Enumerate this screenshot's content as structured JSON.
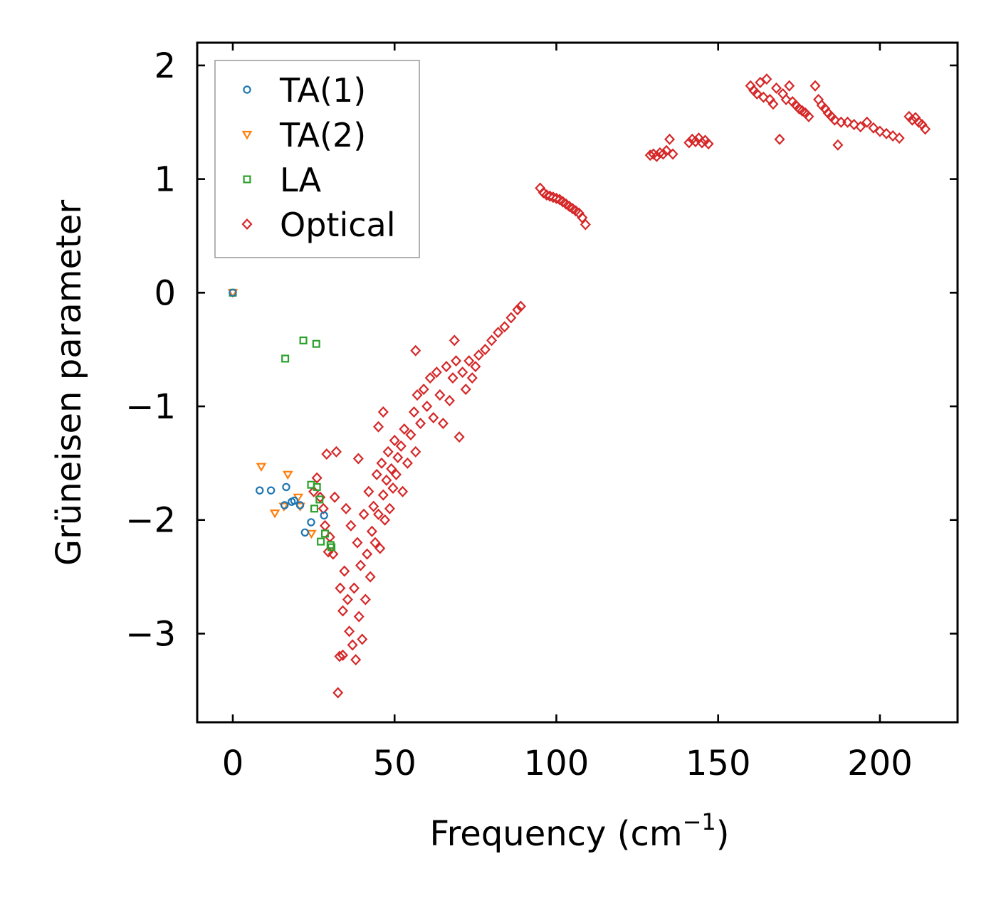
{
  "chart_data": {
    "type": "scatter",
    "title": "",
    "xlabel": "Frequency (cm",
    "xlabel_sup": "−1",
    "xlabel_close": ")",
    "ylabel": "Grüneisen parameter",
    "xlim": [
      -11,
      224
    ],
    "ylim": [
      -3.78,
      2.2
    ],
    "xticks": [
      0,
      50,
      100,
      150,
      200
    ],
    "xtick_labels": [
      "0",
      "50",
      "100",
      "150",
      "200"
    ],
    "yticks": [
      -3,
      -2,
      -1,
      0,
      1,
      2
    ],
    "ytick_labels": [
      "−3",
      "−2",
      "−1",
      "0",
      "1",
      "2"
    ],
    "grid": false,
    "legend_position": "top-left",
    "series": [
      {
        "name": "TA(1)",
        "marker": "circle",
        "color": "#1f77b4",
        "points": [
          [
            0,
            0
          ],
          [
            8.3,
            -1.74
          ],
          [
            11.8,
            -1.74
          ],
          [
            16,
            -1.87
          ],
          [
            16.5,
            -1.71
          ],
          [
            18.2,
            -1.84
          ],
          [
            19,
            -1.83
          ],
          [
            20.8,
            -1.87
          ],
          [
            22.3,
            -2.11
          ],
          [
            24.2,
            -2.02
          ],
          [
            28.2,
            -1.96
          ]
        ]
      },
      {
        "name": "TA(2)",
        "marker": "triangle-down",
        "color": "#ff7f0e",
        "points": [
          [
            0,
            0
          ],
          [
            8.8,
            -1.53
          ],
          [
            13,
            -1.94
          ],
          [
            15.8,
            -1.88
          ],
          [
            17,
            -1.6
          ],
          [
            20.2,
            -1.8
          ],
          [
            20.8,
            -1.88
          ],
          [
            24.3,
            -2.12
          ]
        ]
      },
      {
        "name": "LA",
        "marker": "square",
        "color": "#2ca02c",
        "points": [
          [
            0,
            0
          ],
          [
            16.2,
            -0.58
          ],
          [
            21.8,
            -0.42
          ],
          [
            25.8,
            -0.45
          ],
          [
            24.2,
            -1.69
          ],
          [
            26,
            -1.71
          ],
          [
            25.2,
            -1.9
          ],
          [
            26.8,
            -1.82
          ],
          [
            27.2,
            -2.19
          ],
          [
            28.5,
            -2.12
          ],
          [
            30.2,
            -2.22
          ],
          [
            30.5,
            -2.24
          ]
        ]
      },
      {
        "name": "Optical",
        "marker": "diamond",
        "color": "#d62728",
        "points": [
          [
            25,
            -1.75
          ],
          [
            26,
            -1.63
          ],
          [
            27,
            -1.8
          ],
          [
            28,
            -1.9
          ],
          [
            28.5,
            -2.05
          ],
          [
            29,
            -1.42
          ],
          [
            29.5,
            -2.28
          ],
          [
            30,
            -2.15
          ],
          [
            31,
            -2.3
          ],
          [
            31.5,
            -1.8
          ],
          [
            32,
            -1.4
          ],
          [
            32.5,
            -3.52
          ],
          [
            33,
            -3.2
          ],
          [
            33.2,
            -2.6
          ],
          [
            34,
            -2.8
          ],
          [
            34,
            -3.19
          ],
          [
            34.5,
            -2.45
          ],
          [
            35,
            -1.9
          ],
          [
            35.5,
            -2.7
          ],
          [
            36,
            -2.98
          ],
          [
            36.5,
            -2.05
          ],
          [
            37,
            -3.1
          ],
          [
            37.5,
            -2.6
          ],
          [
            38,
            -3.23
          ],
          [
            38.5,
            -2.2
          ],
          [
            38.8,
            -1.46
          ],
          [
            39,
            -2.85
          ],
          [
            39.5,
            -2.4
          ],
          [
            40,
            -3.05
          ],
          [
            40.5,
            -1.95
          ],
          [
            41,
            -2.7
          ],
          [
            41.5,
            -2.3
          ],
          [
            42,
            -1.75
          ],
          [
            42.5,
            -2.5
          ],
          [
            43,
            -2.1
          ],
          [
            43.5,
            -1.88
          ],
          [
            44,
            -2.2
          ],
          [
            44.5,
            -1.6
          ],
          [
            45,
            -1.95
          ],
          [
            45.5,
            -2.25
          ],
          [
            46,
            -1.5
          ],
          [
            46.5,
            -1.78
          ],
          [
            47,
            -2.0
          ],
          [
            47.5,
            -1.65
          ],
          [
            48,
            -1.4
          ],
          [
            48.5,
            -1.9
          ],
          [
            49,
            -1.55
          ],
          [
            49.5,
            -1.72
          ],
          [
            50,
            -1.3
          ],
          [
            50.5,
            -1.6
          ],
          [
            51,
            -1.45
          ],
          [
            52,
            -1.35
          ],
          [
            52.5,
            -1.75
          ],
          [
            53,
            -1.2
          ],
          [
            54,
            -1.5
          ],
          [
            55,
            -1.25
          ],
          [
            56,
            -1.05
          ],
          [
            56.5,
            -1.4
          ],
          [
            57,
            -0.9
          ],
          [
            58,
            -1.15
          ],
          [
            59,
            -0.85
          ],
          [
            60,
            -1.0
          ],
          [
            61,
            -0.75
          ],
          [
            62,
            -1.1
          ],
          [
            63,
            -0.7
          ],
          [
            64,
            -0.9
          ],
          [
            65,
            -1.15
          ],
          [
            66,
            -0.65
          ],
          [
            67,
            -0.95
          ],
          [
            68,
            -0.75
          ],
          [
            69,
            -0.6
          ],
          [
            70,
            -1.27
          ],
          [
            71,
            -0.7
          ],
          [
            72,
            -0.85
          ],
          [
            73,
            -0.6
          ],
          [
            74,
            -0.75
          ],
          [
            75,
            -0.65
          ],
          [
            76,
            -0.55
          ],
          [
            78,
            -0.5
          ],
          [
            80,
            -0.42
          ],
          [
            82,
            -0.35
          ],
          [
            84,
            -0.3
          ],
          [
            86,
            -0.22
          ],
          [
            88,
            -0.15
          ],
          [
            89,
            -0.12
          ],
          [
            46.5,
            -1.05
          ],
          [
            45,
            -1.18
          ],
          [
            56.5,
            -0.51
          ],
          [
            68.5,
            -0.42
          ],
          [
            95,
            0.92
          ],
          [
            96,
            0.88
          ],
          [
            97,
            0.86
          ],
          [
            98,
            0.85
          ],
          [
            99,
            0.84
          ],
          [
            100,
            0.83
          ],
          [
            101,
            0.82
          ],
          [
            102,
            0.8
          ],
          [
            103,
            0.78
          ],
          [
            104,
            0.76
          ],
          [
            105,
            0.74
          ],
          [
            106,
            0.72
          ],
          [
            107,
            0.7
          ],
          [
            108,
            0.66
          ],
          [
            109,
            0.6
          ],
          [
            129,
            1.21
          ],
          [
            130,
            1.22
          ],
          [
            131,
            1.2
          ],
          [
            132,
            1.23
          ],
          [
            133,
            1.22
          ],
          [
            134,
            1.25
          ],
          [
            135,
            1.35
          ],
          [
            136,
            1.22
          ],
          [
            141,
            1.32
          ],
          [
            142,
            1.35
          ],
          [
            143,
            1.33
          ],
          [
            144,
            1.36
          ],
          [
            145,
            1.32
          ],
          [
            146,
            1.34
          ],
          [
            147,
            1.31
          ],
          [
            160,
            1.82
          ],
          [
            161,
            1.78
          ],
          [
            162,
            1.75
          ],
          [
            163,
            1.85
          ],
          [
            164,
            1.72
          ],
          [
            165,
            1.88
          ],
          [
            166,
            1.7
          ],
          [
            167,
            1.66
          ],
          [
            168,
            1.8
          ],
          [
            169,
            1.35
          ],
          [
            170,
            1.75
          ],
          [
            171,
            1.7
          ],
          [
            172,
            1.82
          ],
          [
            173,
            1.68
          ],
          [
            174,
            1.65
          ],
          [
            175,
            1.62
          ],
          [
            176,
            1.6
          ],
          [
            177,
            1.58
          ],
          [
            178,
            1.55
          ],
          [
            180,
            1.82
          ],
          [
            181,
            1.7
          ],
          [
            182,
            1.65
          ],
          [
            183,
            1.62
          ],
          [
            184,
            1.58
          ],
          [
            185,
            1.55
          ],
          [
            186,
            1.52
          ],
          [
            187,
            1.3
          ],
          [
            188,
            1.5
          ],
          [
            190,
            1.5
          ],
          [
            192,
            1.48
          ],
          [
            194,
            1.46
          ],
          [
            196,
            1.5
          ],
          [
            198,
            1.45
          ],
          [
            200,
            1.42
          ],
          [
            202,
            1.4
          ],
          [
            204,
            1.38
          ],
          [
            206,
            1.36
          ],
          [
            209,
            1.55
          ],
          [
            210,
            1.52
          ],
          [
            211,
            1.54
          ],
          [
            212,
            1.5
          ],
          [
            213,
            1.48
          ],
          [
            214,
            1.44
          ]
        ]
      }
    ]
  }
}
